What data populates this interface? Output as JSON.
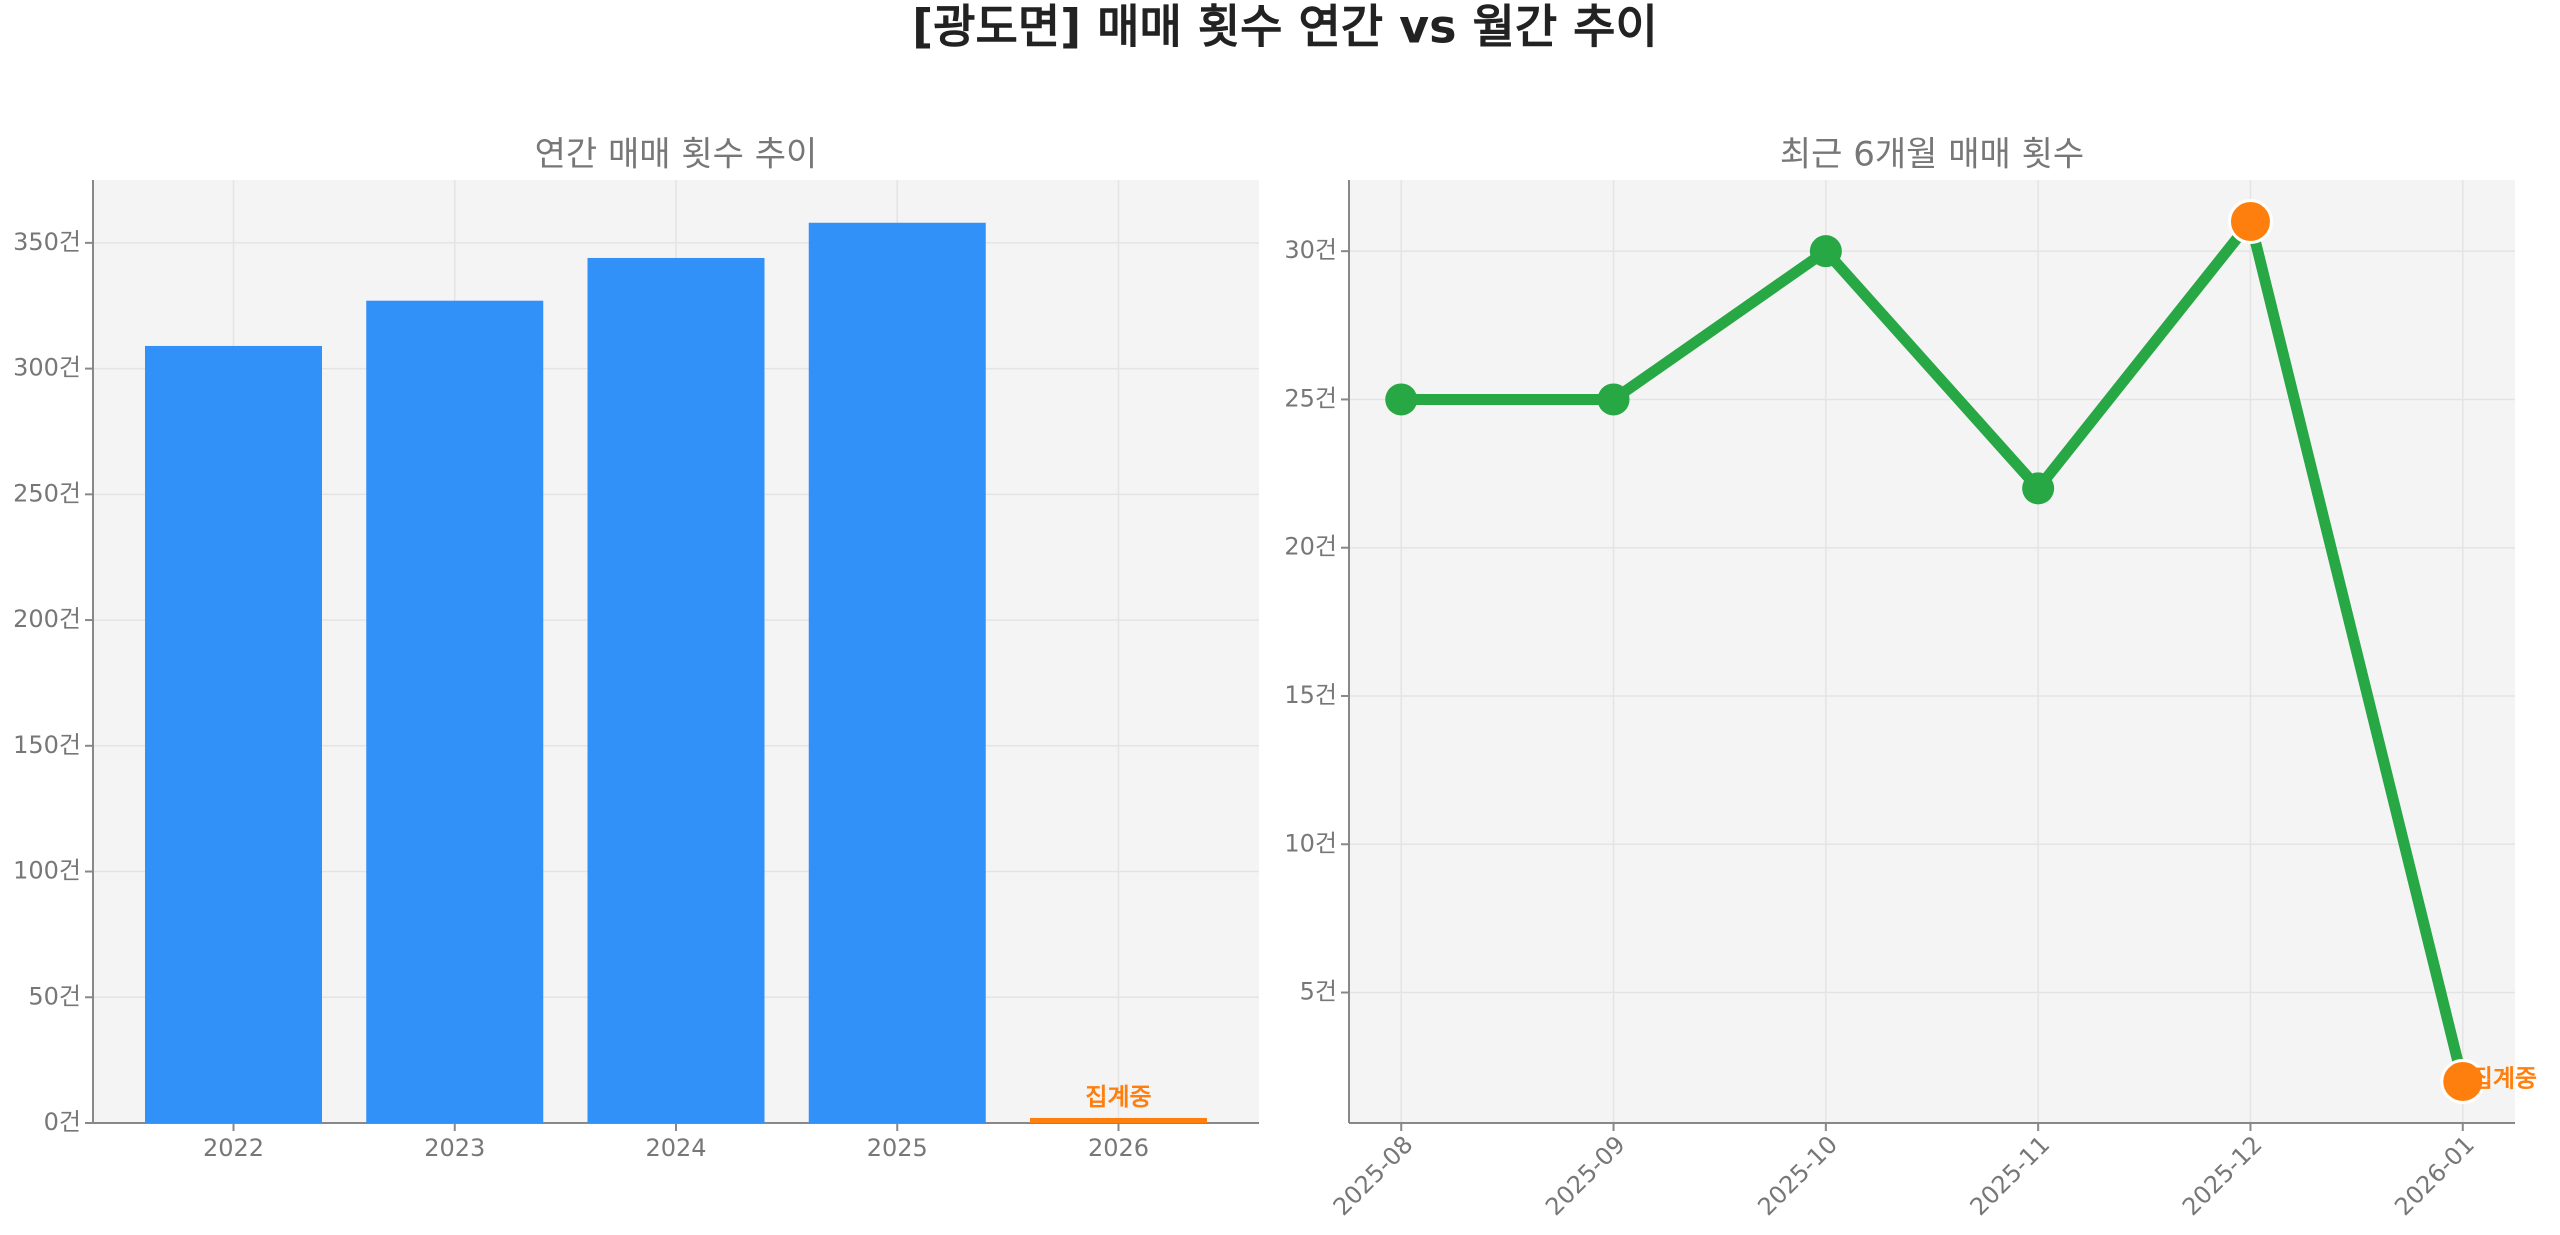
{
  "title": "[광도면] 매매 횟수 연간 vs 월간 추이",
  "chart_data": [
    {
      "type": "bar",
      "title": "연간 매매 횟수 추이",
      "categories": [
        "2022",
        "2023",
        "2024",
        "2025",
        "2026"
      ],
      "values": [
        309,
        327,
        344,
        358,
        2
      ],
      "colors": [
        "#3291f9",
        "#3291f9",
        "#3291f9",
        "#3291f9",
        "#ff7f0e"
      ],
      "annotations": [
        {
          "text": "집계중",
          "category": "2026"
        }
      ],
      "ylim": [
        0,
        375
      ],
      "yticks": [
        {
          "value": 0,
          "label": "0건"
        },
        {
          "value": 50,
          "label": "50건"
        },
        {
          "value": 100,
          "label": "100건"
        },
        {
          "value": 150,
          "label": "150건"
        },
        {
          "value": 200,
          "label": "200건"
        },
        {
          "value": 250,
          "label": "250건"
        },
        {
          "value": 300,
          "label": "300건"
        },
        {
          "value": 350,
          "label": "350건"
        }
      ],
      "grid": true
    },
    {
      "type": "line",
      "title": "최근 6개월 매매 횟수",
      "categories": [
        "2025-08",
        "2025-09",
        "2025-10",
        "2025-11",
        "2025-12",
        "2026-01"
      ],
      "values": [
        25,
        25,
        30,
        22,
        31,
        2
      ],
      "color": "#28a745",
      "marker_colors": [
        "#28a745",
        "#28a745",
        "#28a745",
        "#28a745",
        "#ff7f0e",
        "#ff7f0e"
      ],
      "annotations": [
        {
          "text": "집계중",
          "category": "2026-01"
        }
      ],
      "ylim": [
        0.6,
        32.4
      ],
      "yticks": [
        {
          "value": 5,
          "label": "5건"
        },
        {
          "value": 10,
          "label": "10건"
        },
        {
          "value": 15,
          "label": "15건"
        },
        {
          "value": 20,
          "label": "20건"
        },
        {
          "value": 25,
          "label": "25건"
        },
        {
          "value": 30,
          "label": "30건"
        }
      ],
      "grid": true
    }
  ]
}
